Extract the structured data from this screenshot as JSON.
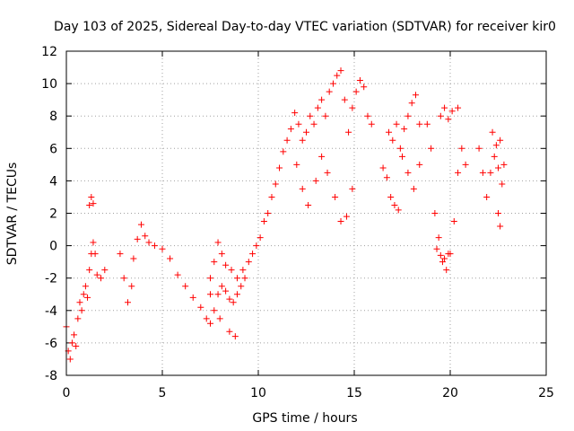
{
  "chart_data": {
    "type": "scatter",
    "title": "Day 103 of 2025, Sidereal Day-to-day VTEC variation (SDTVAR) for receiver kir0",
    "xlabel": "GPS time / hours",
    "ylabel": "SDTVAR / TECUs",
    "xlim": [
      0,
      25
    ],
    "ylim": [
      -8,
      12
    ],
    "xticks": [
      "0",
      "5",
      "10",
      "15",
      "20",
      "25"
    ],
    "yticks": [
      "-8",
      "-6",
      "-4",
      "-2",
      "0",
      "2",
      "4",
      "6",
      "8",
      "10",
      "12"
    ],
    "grid": true,
    "marker": "+",
    "color": "#ff0000",
    "series": [
      {
        "name": "SDTVAR",
        "segments": [
          [
            [
              0.0,
              -5.0
            ],
            [
              0.1,
              -6.5
            ],
            [
              0.2,
              -7.0
            ],
            [
              0.3,
              -6.0
            ],
            [
              0.4,
              -5.5
            ],
            [
              0.5,
              -6.2
            ],
            [
              0.6,
              -4.5
            ],
            [
              0.7,
              -3.5
            ],
            [
              0.8,
              -4.0
            ],
            [
              0.9,
              -3.0
            ],
            [
              1.0,
              -2.5
            ],
            [
              1.1,
              -3.2
            ],
            [
              1.2,
              -1.5
            ],
            [
              1.3,
              -0.5
            ],
            [
              1.4,
              0.2
            ],
            [
              1.5,
              -0.5
            ],
            [
              1.6,
              -1.8
            ],
            [
              1.8,
              -2.0
            ],
            [
              2.0,
              -1.5
            ]
          ],
          [
            [
              1.2,
              2.5
            ],
            [
              1.3,
              3.0
            ],
            [
              1.4,
              2.6
            ]
          ],
          [
            [
              2.8,
              -0.5
            ],
            [
              3.0,
              -2.0
            ],
            [
              3.2,
              -3.5
            ],
            [
              3.4,
              -2.5
            ],
            [
              3.5,
              -0.8
            ],
            [
              3.7,
              0.4
            ],
            [
              3.9,
              1.3
            ],
            [
              4.1,
              0.6
            ],
            [
              4.3,
              0.2
            ],
            [
              4.6,
              0.0
            ],
            [
              5.0,
              -0.2
            ],
            [
              5.4,
              -0.8
            ],
            [
              5.8,
              -1.8
            ],
            [
              6.2,
              -2.5
            ],
            [
              6.6,
              -3.2
            ],
            [
              7.0,
              -3.8
            ],
            [
              7.3,
              -4.5
            ],
            [
              7.5,
              -4.8
            ],
            [
              7.7,
              -4.0
            ],
            [
              7.9,
              -3.0
            ],
            [
              8.1,
              -2.5
            ],
            [
              8.3,
              -2.8
            ],
            [
              8.5,
              -3.3
            ],
            [
              8.7,
              -3.5
            ],
            [
              8.9,
              -3.0
            ],
            [
              9.1,
              -2.5
            ],
            [
              9.3,
              -2.0
            ],
            [
              9.5,
              -1.0
            ],
            [
              9.7,
              -0.5
            ],
            [
              9.9,
              0.0
            ],
            [
              10.1,
              0.5
            ],
            [
              10.3,
              1.5
            ],
            [
              10.5,
              2.0
            ],
            [
              10.7,
              3.0
            ],
            [
              10.9,
              3.8
            ],
            [
              11.1,
              4.8
            ],
            [
              11.3,
              5.8
            ],
            [
              11.5,
              6.5
            ],
            [
              11.7,
              7.2
            ],
            [
              11.9,
              8.2
            ],
            [
              12.1,
              7.5
            ],
            [
              12.3,
              6.5
            ],
            [
              12.5,
              7.0
            ],
            [
              12.7,
              8.0
            ],
            [
              12.9,
              7.5
            ],
            [
              13.1,
              8.5
            ],
            [
              13.3,
              9.0
            ],
            [
              13.5,
              8.0
            ],
            [
              13.7,
              9.5
            ],
            [
              13.9,
              10.0
            ],
            [
              14.1,
              10.5
            ],
            [
              14.3,
              10.8
            ],
            [
              14.5,
              9.0
            ],
            [
              14.7,
              7.0
            ],
            [
              14.9,
              8.5
            ],
            [
              15.1,
              9.5
            ],
            [
              15.3,
              10.2
            ],
            [
              15.5,
              9.8
            ],
            [
              15.7,
              8.0
            ],
            [
              15.9,
              7.5
            ]
          ],
          [
            [
              7.5,
              -2.0
            ],
            [
              7.7,
              -1.0
            ],
            [
              7.9,
              0.2
            ],
            [
              8.1,
              -0.5
            ],
            [
              8.3,
              -1.2
            ],
            [
              8.6,
              -1.5
            ],
            [
              8.9,
              -2.0
            ],
            [
              9.2,
              -1.5
            ]
          ],
          [
            [
              7.5,
              -3.0
            ],
            [
              8.0,
              -4.5
            ],
            [
              8.5,
              -5.3
            ],
            [
              8.8,
              -5.6
            ]
          ],
          [
            [
              12.0,
              5.0
            ],
            [
              12.3,
              3.5
            ],
            [
              12.6,
              2.5
            ],
            [
              13.0,
              4.0
            ],
            [
              13.3,
              5.5
            ],
            [
              13.6,
              4.5
            ],
            [
              14.0,
              3.0
            ],
            [
              14.3,
              1.5
            ],
            [
              14.6,
              1.8
            ],
            [
              14.9,
              3.5
            ]
          ],
          [
            [
              16.5,
              4.8
            ],
            [
              16.7,
              4.2
            ],
            [
              16.9,
              3.0
            ],
            [
              17.1,
              2.5
            ],
            [
              17.3,
              2.2
            ]
          ],
          [
            [
              16.8,
              7.0
            ],
            [
              17.0,
              6.5
            ],
            [
              17.2,
              7.5
            ],
            [
              17.4,
              6.0
            ],
            [
              17.6,
              7.2
            ],
            [
              17.8,
              8.0
            ],
            [
              18.0,
              8.8
            ],
            [
              18.2,
              9.3
            ],
            [
              18.4,
              7.5
            ]
          ],
          [
            [
              17.5,
              5.5
            ],
            [
              17.8,
              4.5
            ],
            [
              18.1,
              3.5
            ],
            [
              18.4,
              5.0
            ]
          ],
          [
            [
              18.8,
              7.5
            ],
            [
              19.0,
              6.0
            ],
            [
              19.2,
              2.0
            ],
            [
              19.4,
              0.5
            ],
            [
              19.6,
              -1.0
            ],
            [
              19.8,
              -1.5
            ],
            [
              20.0,
              -0.5
            ],
            [
              20.2,
              1.5
            ],
            [
              20.4,
              4.5
            ],
            [
              20.6,
              6.0
            ],
            [
              20.8,
              5.0
            ]
          ],
          [
            [
              19.3,
              -0.2
            ],
            [
              19.5,
              -0.6
            ],
            [
              19.7,
              -0.8
            ],
            [
              19.9,
              -0.5
            ]
          ],
          [
            [
              19.5,
              8.0
            ],
            [
              19.7,
              8.5
            ],
            [
              19.9,
              7.8
            ],
            [
              20.1,
              8.3
            ],
            [
              20.4,
              8.5
            ]
          ],
          [
            [
              21.5,
              6.0
            ],
            [
              21.7,
              4.5
            ],
            [
              21.9,
              3.0
            ],
            [
              22.1,
              4.5
            ],
            [
              22.3,
              5.5
            ],
            [
              22.5,
              4.8
            ],
            [
              22.7,
              3.8
            ],
            [
              22.8,
              5.0
            ]
          ],
          [
            [
              22.2,
              7.0
            ],
            [
              22.4,
              6.2
            ],
            [
              22.6,
              6.5
            ]
          ],
          [
            [
              22.5,
              2.0
            ],
            [
              22.6,
              1.2
            ]
          ]
        ]
      }
    ]
  }
}
